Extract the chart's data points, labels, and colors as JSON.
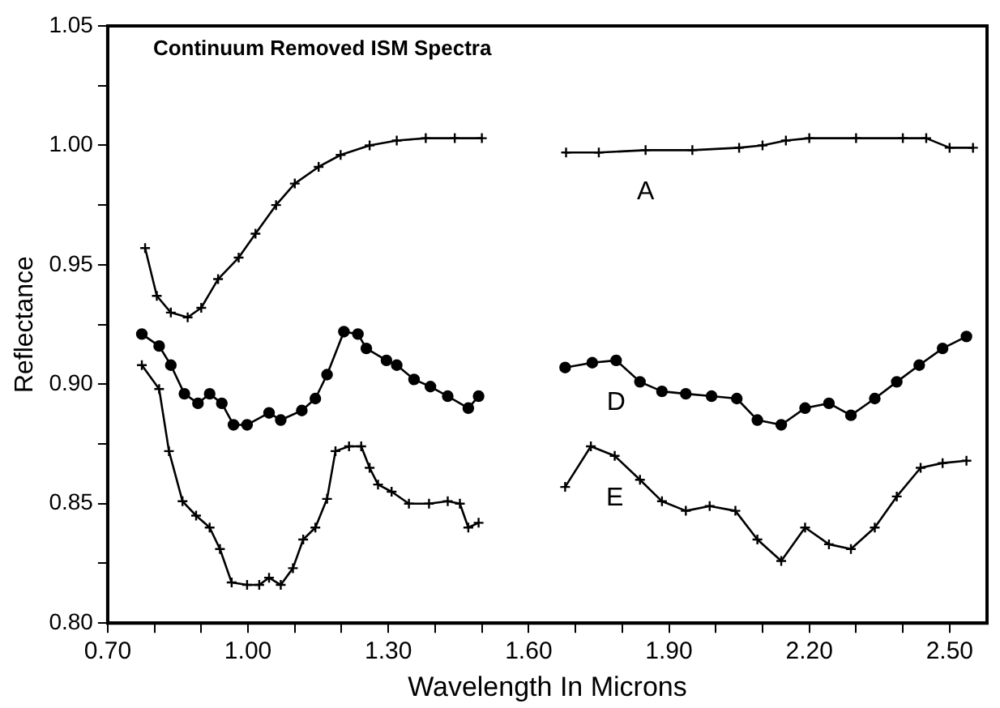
{
  "chart_data": {
    "type": "line",
    "title": "Continuum Removed ISM Spectra",
    "xlabel": "Wavelength In Microns",
    "ylabel": "Reflectance",
    "xlim": [
      0.7,
      2.58
    ],
    "ylim": [
      0.8,
      1.05
    ],
    "xticks": [
      {
        "value": 0.7,
        "label": "0.70"
      },
      {
        "value": 0.8,
        "label": null
      },
      {
        "value": 0.9,
        "label": null
      },
      {
        "value": 1.0,
        "label": "1.00"
      },
      {
        "value": 1.1,
        "label": null
      },
      {
        "value": 1.2,
        "label": null
      },
      {
        "value": 1.3,
        "label": "1.30"
      },
      {
        "value": 1.4,
        "label": null
      },
      {
        "value": 1.5,
        "label": null
      },
      {
        "value": 1.6,
        "label": "1.60"
      },
      {
        "value": 1.7,
        "label": null
      },
      {
        "value": 1.8,
        "label": null
      },
      {
        "value": 1.9,
        "label": "1.90"
      },
      {
        "value": 2.0,
        "label": null
      },
      {
        "value": 2.1,
        "label": null
      },
      {
        "value": 2.2,
        "label": "2.20"
      },
      {
        "value": 2.3,
        "label": null
      },
      {
        "value": 2.4,
        "label": null
      },
      {
        "value": 2.5,
        "label": "2.50"
      }
    ],
    "yticks": [
      {
        "value": 0.8,
        "label": "0.80"
      },
      {
        "value": 0.825,
        "label": null
      },
      {
        "value": 0.85,
        "label": "0.85"
      },
      {
        "value": 0.875,
        "label": null
      },
      {
        "value": 0.9,
        "label": "0.90"
      },
      {
        "value": 0.925,
        "label": null
      },
      {
        "value": 0.95,
        "label": "0.95"
      },
      {
        "value": 0.975,
        "label": null
      },
      {
        "value": 1.0,
        "label": "1.00"
      },
      {
        "value": 1.025,
        "label": null
      },
      {
        "value": 1.05,
        "label": "1.05"
      }
    ],
    "grid": false,
    "legend": false,
    "line_style": "solid",
    "series": [
      {
        "name": "A",
        "color": "#000000",
        "marker": "cross",
        "x": [
          0.78,
          0.805,
          0.835,
          0.871,
          0.9,
          0.936,
          0.98,
          1.016,
          1.06,
          1.1,
          1.151,
          1.198,
          1.26,
          1.318,
          1.38,
          1.442,
          1.5,
          1.58,
          1.68,
          1.75,
          1.85,
          1.95,
          2.05,
          2.1,
          2.15,
          2.2,
          2.3,
          2.4,
          2.45,
          2.5,
          2.55
        ],
        "values": [
          0.957,
          0.937,
          0.93,
          0.928,
          0.932,
          0.944,
          0.953,
          0.963,
          0.975,
          0.984,
          0.991,
          0.996,
          1.0,
          1.002,
          1.003,
          1.003,
          1.003,
          null,
          0.997,
          0.997,
          0.998,
          0.998,
          0.999,
          1.0,
          1.002,
          1.003,
          1.003,
          1.003,
          1.003,
          0.999,
          0.999
        ]
      },
      {
        "name": "D",
        "color": "#000000",
        "marker": "circle",
        "x": [
          0.773,
          0.81,
          0.835,
          0.864,
          0.893,
          0.918,
          0.944,
          0.969,
          0.998,
          1.045,
          1.07,
          1.115,
          1.144,
          1.169,
          1.205,
          1.235,
          1.253,
          1.296,
          1.318,
          1.355,
          1.39,
          1.427,
          1.471,
          1.493,
          1.58,
          1.678,
          1.736,
          1.787,
          1.838,
          1.885,
          1.936,
          1.991,
          2.045,
          2.089,
          2.14,
          2.191,
          2.242,
          2.289,
          2.34,
          2.387,
          2.435,
          2.485,
          2.536
        ],
        "values": [
          0.921,
          0.916,
          0.908,
          0.896,
          0.892,
          0.896,
          0.892,
          0.883,
          0.883,
          0.888,
          0.885,
          0.889,
          0.894,
          0.904,
          0.922,
          0.921,
          0.915,
          0.91,
          0.908,
          0.902,
          0.899,
          0.895,
          0.89,
          0.895,
          null,
          0.907,
          0.909,
          0.91,
          0.901,
          0.897,
          0.896,
          0.895,
          0.894,
          0.885,
          0.883,
          0.89,
          0.892,
          0.887,
          0.894,
          0.901,
          0.908,
          0.915,
          0.92
        ]
      },
      {
        "name": "E",
        "color": "#000000",
        "marker": "cross",
        "x": [
          0.773,
          0.81,
          0.831,
          0.86,
          0.889,
          0.918,
          0.94,
          0.965,
          0.998,
          1.024,
          1.045,
          1.07,
          1.096,
          1.118,
          1.144,
          1.169,
          1.187,
          1.216,
          1.242,
          1.26,
          1.278,
          1.307,
          1.344,
          1.387,
          1.427,
          1.453,
          1.471,
          1.493,
          1.58,
          1.678,
          1.733,
          1.784,
          1.838,
          1.885,
          1.936,
          1.987,
          2.042,
          2.089,
          2.14,
          2.191,
          2.242,
          2.289,
          2.34,
          2.387,
          2.438,
          2.485,
          2.536
        ],
        "values": [
          0.908,
          0.898,
          0.872,
          0.851,
          0.845,
          0.84,
          0.831,
          0.817,
          0.816,
          0.816,
          0.819,
          0.816,
          0.823,
          0.835,
          0.84,
          0.852,
          0.872,
          0.874,
          0.874,
          0.865,
          0.858,
          0.855,
          0.85,
          0.85,
          0.851,
          0.85,
          0.84,
          0.842,
          null,
          0.857,
          0.874,
          0.87,
          0.86,
          0.851,
          0.847,
          0.849,
          0.847,
          0.835,
          0.826,
          0.84,
          0.833,
          0.831,
          0.84,
          0.853,
          0.865,
          0.867,
          0.868
        ]
      }
    ]
  }
}
